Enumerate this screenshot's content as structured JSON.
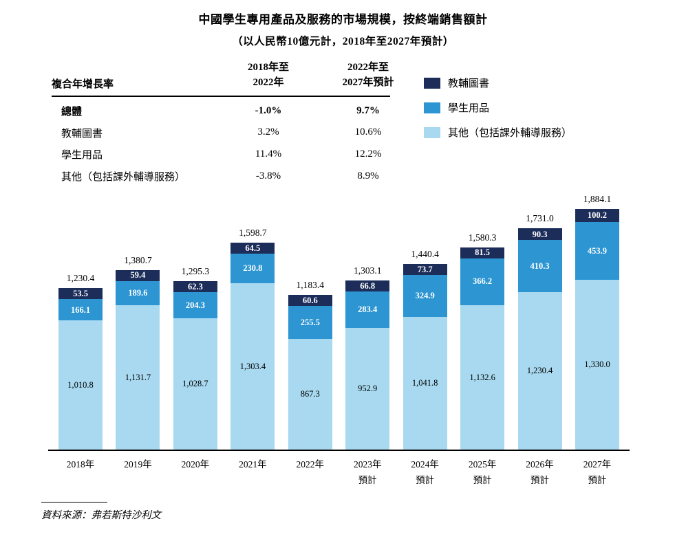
{
  "title": "中國學生專用產品及服務的市場規模，按終端銷售額計",
  "subtitle": "（以人民幣10億元計，2018年至2027年預計）",
  "table": {
    "header": {
      "label": "複合年增長率",
      "col1": "2018年至\n2022年",
      "col2": "2022年至\n2027年預計"
    },
    "rows": [
      {
        "label": "總體",
        "col1": "-1.0%",
        "col2": "9.7%"
      },
      {
        "label": "教輔圖書",
        "col1": "3.2%",
        "col2": "10.6%"
      },
      {
        "label": "學生用品",
        "col1": "11.4%",
        "col2": "12.2%"
      },
      {
        "label": "其他（包括課外輔導服務）",
        "col1": "-3.8%",
        "col2": "8.9%"
      }
    ]
  },
  "legend": [
    {
      "label": "教輔圖書",
      "color": "#1d2d5a"
    },
    {
      "label": "學生用品",
      "color": "#2c95d2"
    },
    {
      "label": "其他（包括課外輔導服務）",
      "color": "#a8d9f0"
    }
  ],
  "chart_data": {
    "type": "bar",
    "stacked": true,
    "title": "中國學生專用產品及服務的市場規模，按終端銷售額計",
    "unit": "人民幣10億元",
    "grid": false,
    "legend_position": "top-right",
    "ylim": [
      0,
      1980
    ],
    "categories": [
      "2018年",
      "2019年",
      "2020年",
      "2021年",
      "2022年",
      "2023年\n預計",
      "2024年\n預計",
      "2025年\n預計",
      "2026年\n預計",
      "2027年\n預計"
    ],
    "series": [
      {
        "name": "教輔圖書",
        "color": "#1d2d5a",
        "values": [
          53.5,
          59.4,
          62.3,
          64.5,
          60.6,
          66.8,
          73.7,
          81.5,
          90.3,
          100.2
        ]
      },
      {
        "name": "學生用品",
        "color": "#2c95d2",
        "values": [
          166.1,
          189.6,
          204.3,
          230.8,
          255.5,
          283.4,
          324.9,
          366.2,
          410.3,
          453.9
        ]
      },
      {
        "name": "其他（包括課外輔導服務）",
        "color": "#a8d9f0",
        "values": [
          1010.8,
          1131.7,
          1028.7,
          1303.4,
          867.3,
          952.9,
          1041.8,
          1132.6,
          1230.4,
          1330.0
        ]
      }
    ],
    "totals": [
      1230.4,
      1380.7,
      1295.3,
      1598.7,
      1183.4,
      1303.1,
      1440.4,
      1580.3,
      1731.0,
      1884.1
    ]
  },
  "source": "資料來源：弗若斯特沙利文"
}
